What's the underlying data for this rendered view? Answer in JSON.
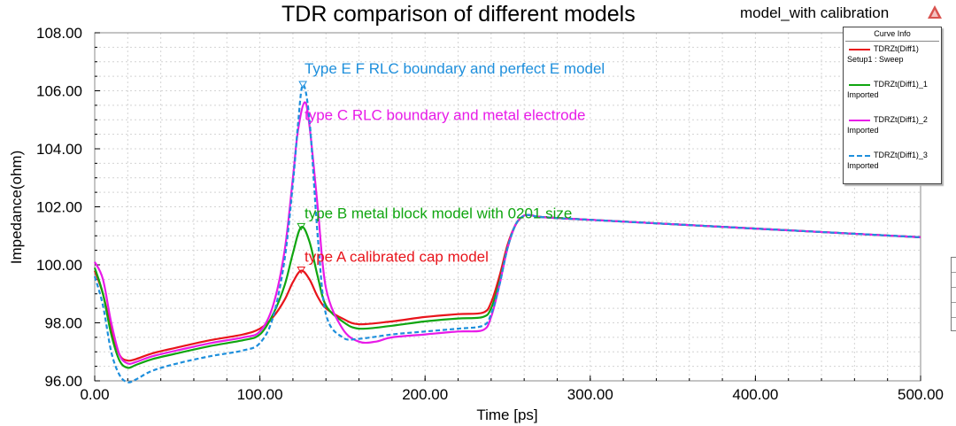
{
  "chart_data": {
    "type": "line",
    "title": "TDR comparison of different models",
    "subtitle": "model_with calibration",
    "xlabel": "Time [ps]",
    "ylabel": "Impedance(ohm)",
    "xlim": [
      0,
      500
    ],
    "ylim": [
      96,
      108
    ],
    "xticks": [
      "0.00",
      "100.00",
      "200.00",
      "300.00",
      "400.00",
      "500.00"
    ],
    "yticks": [
      "96.00",
      "98.00",
      "100.00",
      "102.00",
      "104.00",
      "106.00",
      "108.00"
    ],
    "grid": true,
    "legend_title": "Curve Info",
    "legend_position": "top-right",
    "series": [
      {
        "name": "TDRZt(Diff1)",
        "sub": "Setup1 : Sweep",
        "color": "#e8141b",
        "dash": false,
        "x": [
          0,
          5,
          10,
          15,
          20,
          25,
          35,
          50,
          70,
          90,
          100,
          108,
          115,
          120,
          125,
          130,
          135,
          140,
          150,
          160,
          180,
          200,
          220,
          235,
          240,
          245,
          250,
          255,
          260,
          265,
          270,
          300,
          400,
          500
        ],
        "y": [
          99.8,
          99.0,
          97.8,
          96.9,
          96.7,
          96.75,
          96.95,
          97.15,
          97.4,
          97.6,
          97.8,
          98.2,
          98.8,
          99.4,
          99.8,
          99.5,
          98.9,
          98.5,
          98.15,
          97.95,
          98.05,
          98.2,
          98.3,
          98.35,
          98.7,
          99.6,
          100.7,
          101.4,
          101.7,
          101.7,
          101.65,
          101.55,
          101.25,
          100.95
        ]
      },
      {
        "name": "TDRZt(Diff1)_1",
        "sub": "Imported",
        "color": "#10a510",
        "dash": false,
        "x": [
          0,
          5,
          10,
          15,
          20,
          25,
          35,
          50,
          70,
          90,
          100,
          108,
          115,
          120,
          125,
          130,
          135,
          140,
          150,
          160,
          180,
          200,
          220,
          235,
          240,
          245,
          250,
          255,
          260,
          265,
          270,
          300,
          400,
          500
        ],
        "y": [
          99.9,
          99.0,
          97.6,
          96.7,
          96.45,
          96.55,
          96.75,
          96.95,
          97.2,
          97.4,
          97.6,
          98.3,
          99.3,
          100.4,
          101.3,
          100.8,
          99.6,
          98.6,
          98.05,
          97.8,
          97.9,
          98.05,
          98.15,
          98.2,
          98.5,
          99.4,
          100.6,
          101.4,
          101.7,
          101.7,
          101.65,
          101.55,
          101.25,
          100.95
        ]
      },
      {
        "name": "TDRZt(Diff1)_2",
        "sub": "Imported",
        "color": "#e81be8",
        "dash": false,
        "x": [
          0,
          5,
          10,
          15,
          20,
          25,
          35,
          50,
          70,
          90,
          100,
          108,
          115,
          120,
          123,
          127,
          130,
          135,
          140,
          150,
          160,
          170,
          180,
          200,
          220,
          235,
          240,
          245,
          250,
          255,
          260,
          265,
          270,
          300,
          400,
          500
        ],
        "y": [
          100.1,
          99.5,
          98.0,
          96.9,
          96.6,
          96.65,
          96.85,
          97.05,
          97.3,
          97.5,
          97.7,
          98.6,
          100.5,
          103.0,
          104.6,
          105.6,
          104.8,
          102.0,
          99.2,
          97.8,
          97.35,
          97.35,
          97.5,
          97.6,
          97.7,
          97.75,
          98.2,
          99.3,
          100.6,
          101.4,
          101.7,
          101.7,
          101.65,
          101.55,
          101.25,
          100.95
        ]
      },
      {
        "name": "TDRZt(Diff1)_3",
        "sub": "Imported",
        "color": "#1e8fdc",
        "dash": true,
        "x": [
          0,
          5,
          10,
          15,
          20,
          25,
          35,
          50,
          70,
          90,
          100,
          108,
          115,
          120,
          123,
          126,
          130,
          135,
          140,
          150,
          160,
          180,
          200,
          220,
          235,
          240,
          245,
          250,
          255,
          260,
          265,
          270,
          300,
          400,
          500
        ],
        "y": [
          99.6,
          98.6,
          97.0,
          96.2,
          95.95,
          96.05,
          96.35,
          96.6,
          96.85,
          97.05,
          97.3,
          98.2,
          100.2,
          102.8,
          104.8,
          106.2,
          105.0,
          101.0,
          98.3,
          97.5,
          97.45,
          97.6,
          97.7,
          97.8,
          97.9,
          98.3,
          99.3,
          100.6,
          101.4,
          101.7,
          101.7,
          101.65,
          101.55,
          101.25,
          100.95
        ]
      }
    ],
    "annotations": [
      {
        "text": "Type E F RLC boundary and perfect E model",
        "x": 127,
        "y": 106.6,
        "color": "#1e8fdc",
        "marker_x": 126,
        "marker_y": 106.2
      },
      {
        "text": "type C RLC boundary and metal electrode",
        "x": 127,
        "y": 105.0,
        "color": "#e81be8"
      },
      {
        "text": "type B metal block model with 0201 size",
        "x": 127,
        "y": 101.6,
        "color": "#10a510",
        "marker_x": 125,
        "marker_y": 101.3
      },
      {
        "text": "type A calibrated cap model",
        "x": 127,
        "y": 100.1,
        "color": "#e8141b",
        "marker_x": 125,
        "marker_y": 99.8
      }
    ]
  }
}
